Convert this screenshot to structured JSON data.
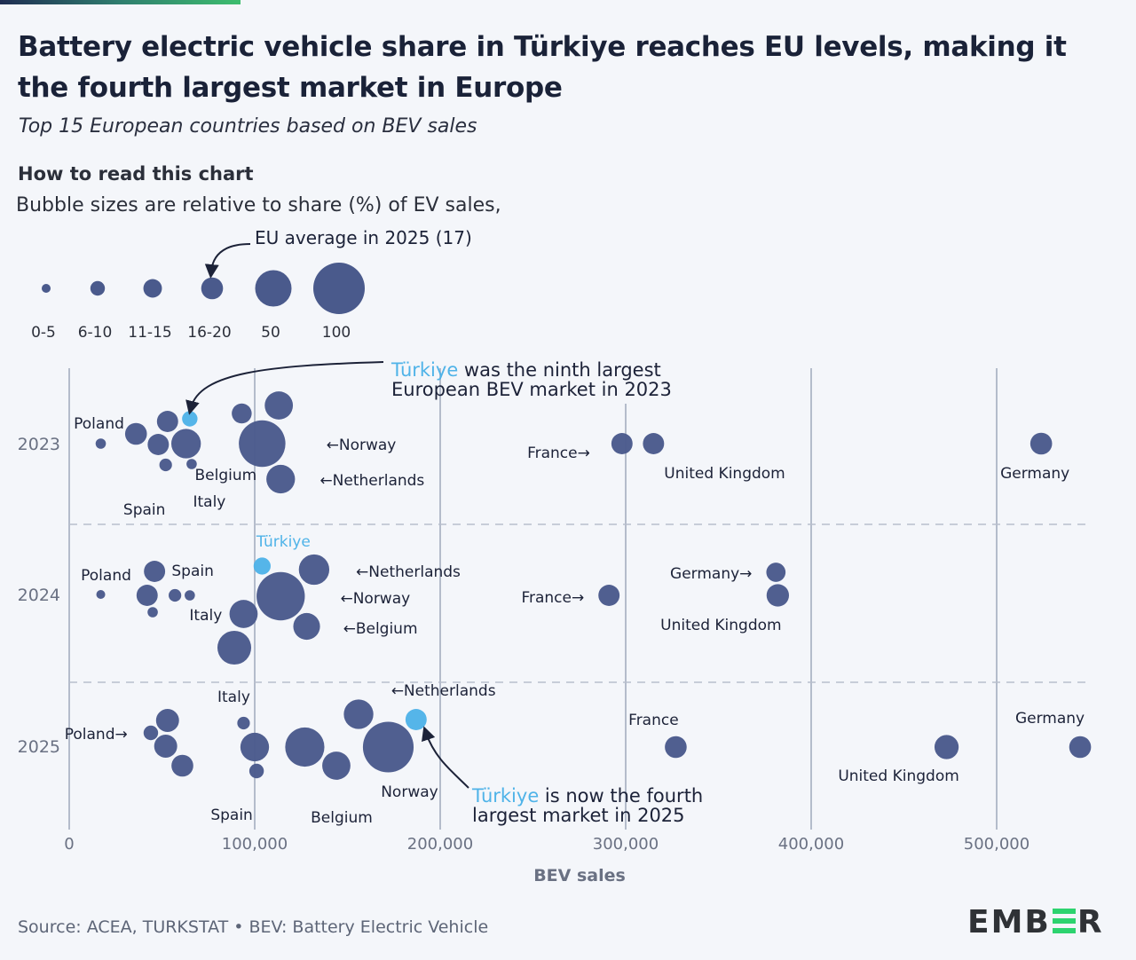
{
  "title": "Battery electric vehicle share in Türkiye reaches EU levels, making it the fourth largest market in Europe",
  "subtitle": "Top 15 European countries based on BEV sales",
  "how_to_read": {
    "heading": "How to read this chart",
    "description": "Bubble sizes are relative to share (%) of EV sales,",
    "legend_annotation": "EU average in 2025 (17)",
    "legend_items": [
      {
        "label": "0-5",
        "share": 3
      },
      {
        "label": "6-10",
        "share": 8
      },
      {
        "label": "11-15",
        "share": 13
      },
      {
        "label": "16-20",
        "share": 18
      },
      {
        "label": "50",
        "share": 50
      },
      {
        "label": "100",
        "share": 100
      }
    ]
  },
  "colors": {
    "bubble": "#4a5a8c",
    "highlight": "#4fb3e8",
    "text": "#1c2238",
    "axis_text": "#6a7183",
    "grid": "#b4bccb",
    "logo_accent": "#2dd36f"
  },
  "annotations": {
    "a2023_highlight": "Türkiye",
    "a2023_line1_rest": " was the ninth largest",
    "a2023_line2": "European BEV market in 2023",
    "a2025_highlight": "Türkiye",
    "a2025_line1_rest": " is now the fourth",
    "a2025_line2": "largest market in 2025"
  },
  "chart_data": {
    "type": "scatter",
    "title": "Battery electric vehicle share in Türkiye reaches EU levels, making it the fourth largest market in Europe",
    "xlabel": "BEV sales",
    "ylabel": "",
    "xlim": [
      0,
      550000
    ],
    "x_ticks": [
      0,
      100000,
      200000,
      300000,
      400000,
      500000
    ],
    "x_tick_labels": [
      "0",
      "100,000",
      "200,000",
      "300,000",
      "400,000",
      "500,000"
    ],
    "rows": [
      "2023",
      "2024",
      "2025"
    ],
    "size_encoding": "share (%) of EV sales",
    "grid": true,
    "series": [
      {
        "name": "2023",
        "points": [
          {
            "country": "Poland",
            "sales": 17000,
            "share": 4
          },
          {
            "country": "",
            "sales": 36000,
            "share": 18
          },
          {
            "country": "",
            "sales": 53000,
            "share": 17
          },
          {
            "country": "",
            "sales": 48000,
            "share": 17
          },
          {
            "country": "Spain",
            "sales": 52000,
            "share": 6
          },
          {
            "country": "Türkiye",
            "sales": 65000,
            "share": 9,
            "highlight": true
          },
          {
            "country": "",
            "sales": 63000,
            "share": 33
          },
          {
            "country": "Italy",
            "sales": 66000,
            "share": 4
          },
          {
            "country": "Belgium",
            "sales": 93000,
            "share": 15
          },
          {
            "country": "",
            "sales": 113000,
            "share": 30
          },
          {
            "country": "Norway",
            "sales": 104000,
            "share": 82
          },
          {
            "country": "Netherlands",
            "sales": 114000,
            "share": 31
          },
          {
            "country": "France",
            "sales": 298000,
            "share": 17
          },
          {
            "country": "United Kingdom",
            "sales": 315000,
            "share": 17
          },
          {
            "country": "Germany",
            "sales": 524000,
            "share": 18
          }
        ]
      },
      {
        "name": "2024",
        "points": [
          {
            "country": "Poland",
            "sales": 17000,
            "share": 3
          },
          {
            "country": "",
            "sales": 46000,
            "share": 17
          },
          {
            "country": "",
            "sales": 42000,
            "share": 17
          },
          {
            "country": "",
            "sales": 45000,
            "share": 4
          },
          {
            "country": "Spain",
            "sales": 57000,
            "share": 6
          },
          {
            "country": "Italy",
            "sales": 65000,
            "share": 4
          },
          {
            "country": "",
            "sales": 94000,
            "share": 30
          },
          {
            "country": "",
            "sales": 89000,
            "share": 43
          },
          {
            "country": "Türkiye",
            "sales": 104000,
            "share": 11,
            "highlight": true
          },
          {
            "country": "Norway",
            "sales": 114000,
            "share": 88
          },
          {
            "country": "Netherlands",
            "sales": 132000,
            "share": 35
          },
          {
            "country": "Belgium",
            "sales": 128000,
            "share": 27
          },
          {
            "country": "France",
            "sales": 291000,
            "share": 17
          },
          {
            "country": "Germany",
            "sales": 381000,
            "share": 14
          },
          {
            "country": "United Kingdom",
            "sales": 382000,
            "share": 19
          }
        ]
      },
      {
        "name": "2025",
        "points": [
          {
            "country": "Poland",
            "sales": 44000,
            "share": 8
          },
          {
            "country": "",
            "sales": 53000,
            "share": 20
          },
          {
            "country": "",
            "sales": 52000,
            "share": 20
          },
          {
            "country": "",
            "sales": 61000,
            "share": 18
          },
          {
            "country": "Italy",
            "sales": 94000,
            "share": 6
          },
          {
            "country": "",
            "sales": 100000,
            "share": 31
          },
          {
            "country": "Spain",
            "sales": 101000,
            "share": 8
          },
          {
            "country": "",
            "sales": 127000,
            "share": 58
          },
          {
            "country": "Belgium",
            "sales": 144000,
            "share": 30
          },
          {
            "country": "Netherlands",
            "sales": 156000,
            "share": 33
          },
          {
            "country": "Norway",
            "sales": 172000,
            "share": 97
          },
          {
            "country": "Türkiye",
            "sales": 187000,
            "share": 17,
            "highlight": true
          },
          {
            "country": "France",
            "sales": 327000,
            "share": 18
          },
          {
            "country": "United Kingdom",
            "sales": 473000,
            "share": 22
          },
          {
            "country": "Germany",
            "sales": 545000,
            "share": 18
          }
        ]
      }
    ]
  },
  "footer": {
    "source": "Source: ACEA, TURKSTAT • BEV: Battery Electric Vehicle",
    "logo_left": "EMB",
    "logo_right": "R"
  }
}
